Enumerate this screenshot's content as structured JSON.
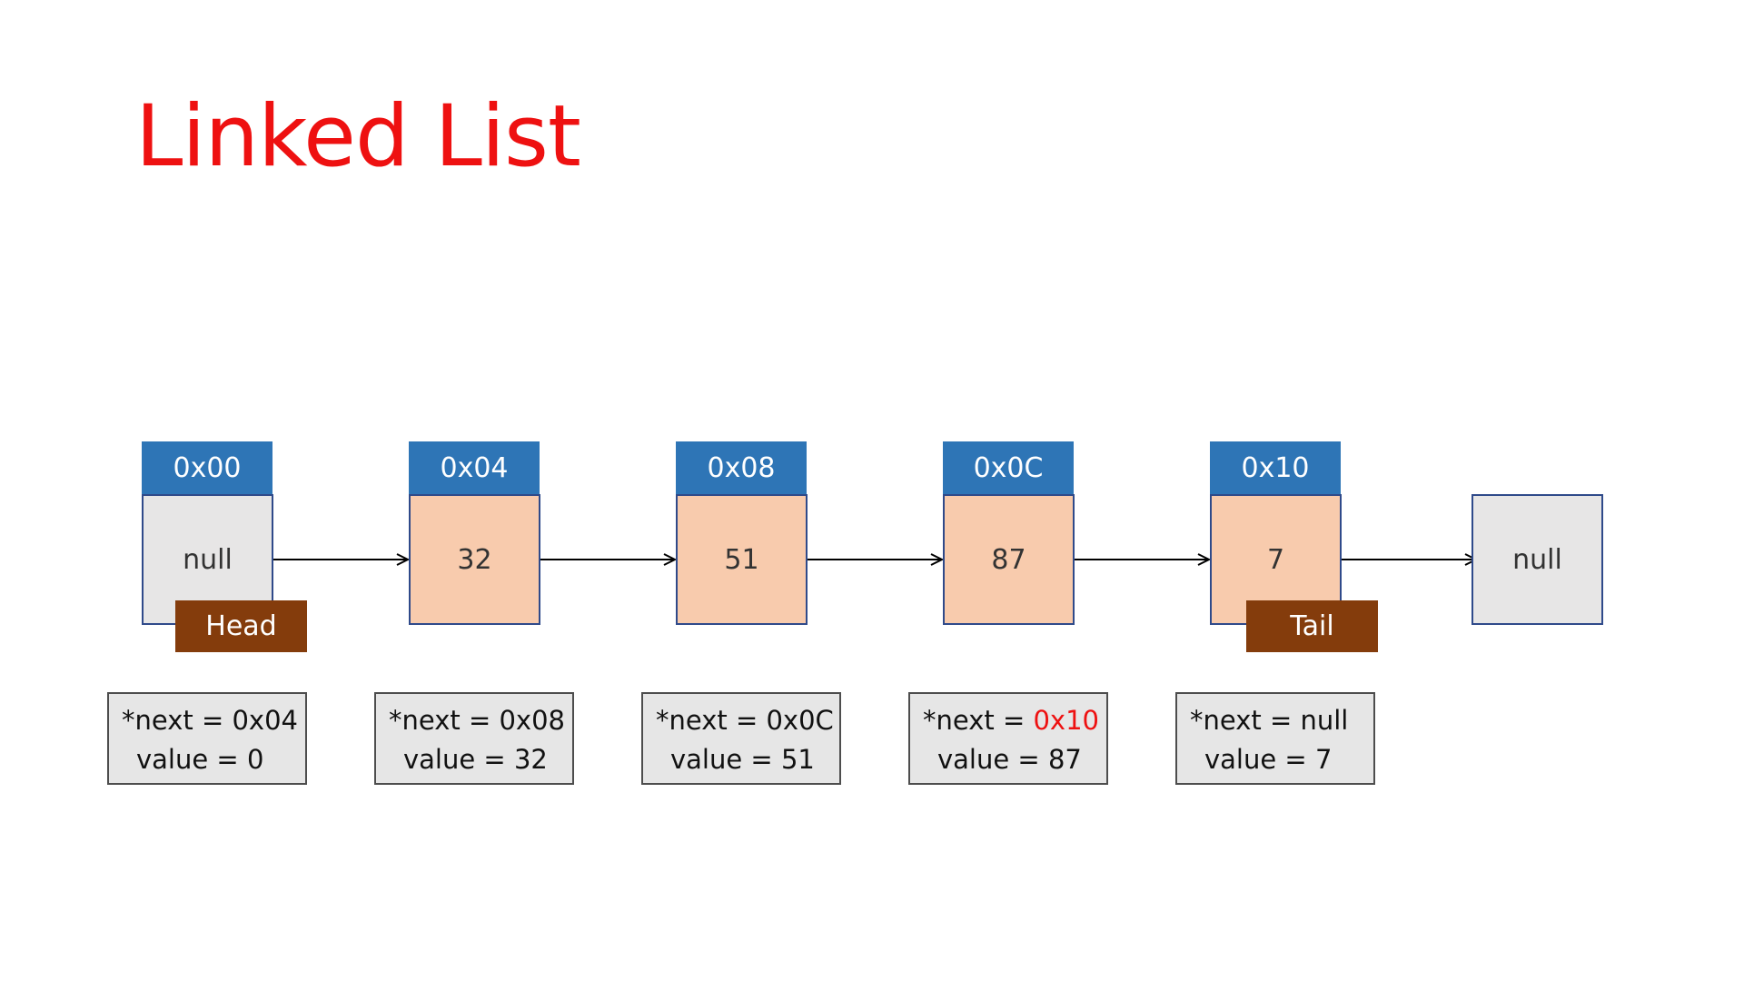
{
  "title": "Linked List",
  "colors": {
    "title": "#ee1111",
    "address_header": "#2e75b6",
    "node_fill": "#f8cbad",
    "null_fill": "#e7e6e6",
    "tag_fill": "#843c0c",
    "highlight": "#ee1111"
  },
  "nodes": [
    {
      "address": "0x00",
      "value": "null",
      "info_next_prefix": "*next = ",
      "info_next_value": "0x04",
      "info_value": "value = 0",
      "highlight_next": false
    },
    {
      "address": "0x04",
      "value": "32",
      "info_next_prefix": "*next = ",
      "info_next_value": "0x08",
      "info_value": "value = 32",
      "highlight_next": false
    },
    {
      "address": "0x08",
      "value": "51",
      "info_next_prefix": "*next = ",
      "info_next_value": "0x0C",
      "info_value": "value = 51",
      "highlight_next": false
    },
    {
      "address": "0x0C",
      "value": "87",
      "info_next_prefix": "*next = ",
      "info_next_value": "0x10",
      "info_value": "value = 87",
      "highlight_next": true
    },
    {
      "address": "0x10",
      "value": "7",
      "info_next_prefix": "*next = ",
      "info_next_value": "null",
      "info_value": "value = 7",
      "highlight_next": false
    }
  ],
  "terminal_node": "null",
  "tags": {
    "head": "Head",
    "tail": "Tail"
  }
}
